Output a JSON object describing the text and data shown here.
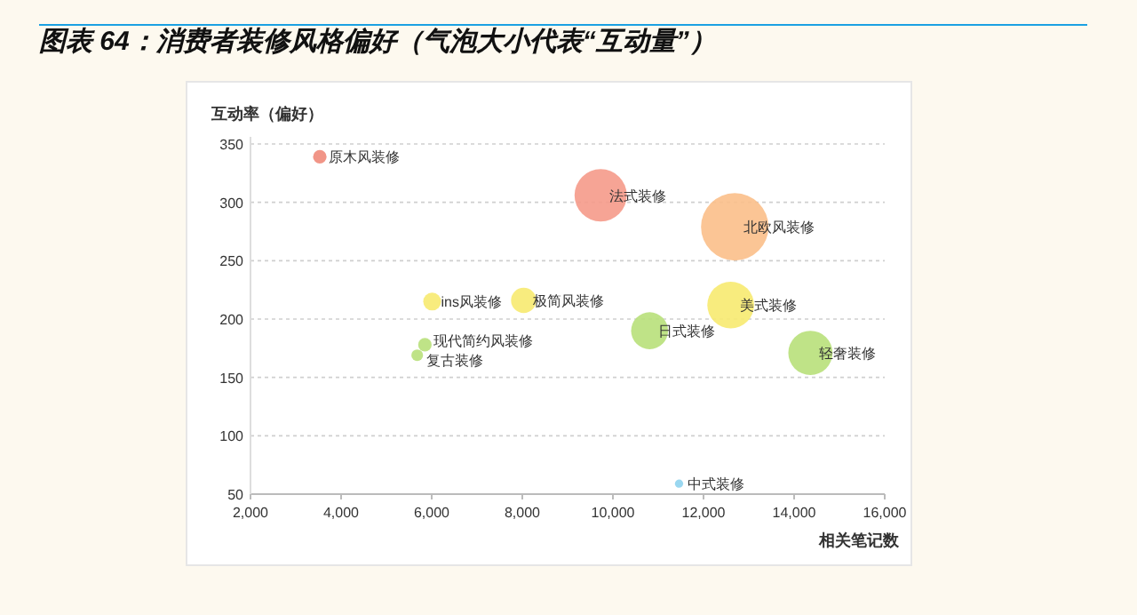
{
  "chart_data": {
    "type": "bubble",
    "title": "图表 64：消费者装修风格偏好（气泡大小代表“互动量”）",
    "xlabel": "相关笔记数",
    "ylabel": "互动率（偏好）",
    "xlim": [
      2000,
      16000
    ],
    "xticks": [
      {
        "value": 2000,
        "label": "2,000"
      },
      {
        "value": 4000,
        "label": "4,000"
      },
      {
        "value": 6000,
        "label": "6,000"
      },
      {
        "value": 8000,
        "label": "8,000"
      },
      {
        "value": 10000,
        "label": "10,000"
      },
      {
        "value": 12000,
        "label": "12,000"
      },
      {
        "value": 14000,
        "label": "14,000"
      },
      {
        "value": 16000,
        "label": "16,000"
      }
    ],
    "ylim": [
      50,
      350
    ],
    "yticks": [
      50,
      100,
      150,
      200,
      250,
      300,
      350
    ],
    "grid": "y",
    "series": [
      {
        "name": "原木风装修",
        "color": "#f08a7a",
        "x": [
          3530
        ],
        "values": [
          339
        ],
        "sizes": [
          0.04
        ]
      },
      {
        "name": "法式装修",
        "color": "#f59a8a",
        "x": [
          9730
        ],
        "values": [
          306
        ],
        "sizes": [
          0.6
        ]
      },
      {
        "name": "北欧风装修",
        "color": "#fbbf8a",
        "x": [
          12690
        ],
        "values": [
          279
        ],
        "sizes": [
          1
        ]
      },
      {
        "name": "ins风装修",
        "color": "#f7ea70",
        "x": [
          6010
        ],
        "values": [
          215
        ],
        "sizes": [
          0.07
        ]
      },
      {
        "name": "极简风装修",
        "color": "#f7ea70",
        "x": [
          8030
        ],
        "values": [
          216
        ],
        "sizes": [
          0.14
        ]
      },
      {
        "name": "美式装修",
        "color": "#f7ea70",
        "x": [
          12600
        ],
        "values": [
          212
        ],
        "sizes": [
          0.48
        ]
      },
      {
        "name": "日式装修",
        "color": "#b8e07a",
        "x": [
          10810
        ],
        "values": [
          190
        ],
        "sizes": [
          0.3
        ]
      },
      {
        "name": "现代简约风装修",
        "color": "#b8e07a",
        "x": [
          5850
        ],
        "values": [
          178
        ],
        "sizes": [
          0.04
        ]
      },
      {
        "name": "复古装修",
        "color": "#b8e07a",
        "x": [
          5680
        ],
        "values": [
          169
        ],
        "sizes": [
          0.03
        ]
      },
      {
        "name": "轻奢装修",
        "color": "#b8e07a",
        "x": [
          14360
        ],
        "values": [
          171
        ],
        "sizes": [
          0.43
        ]
      },
      {
        "name": "中式装修",
        "color": "#8fd3ee",
        "x": [
          11460
        ],
        "values": [
          59
        ],
        "sizes": [
          0.015
        ]
      }
    ]
  }
}
